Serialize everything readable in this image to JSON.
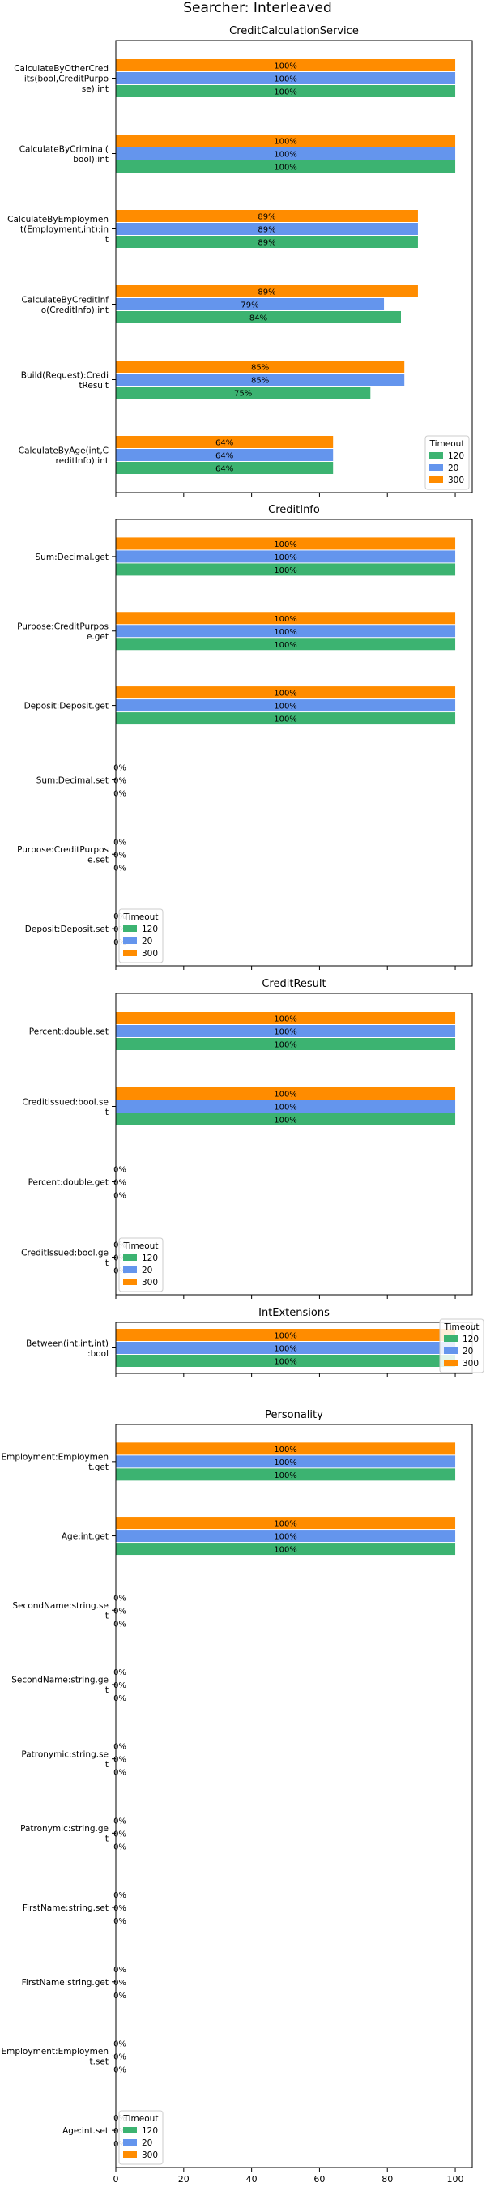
{
  "figure_title": "Searcher: Interleaved",
  "colors": {
    "120": "#3cb371",
    "20": "#6495ed",
    "300": "#ff8c00"
  },
  "chart_data": [
    {
      "type": "bar",
      "orientation": "horizontal",
      "title": "CreditCalculationService",
      "xlim": [
        0,
        105
      ],
      "xticks": [
        0,
        20,
        40,
        60,
        80,
        100
      ],
      "show_xtick_labels": false,
      "categories": [
        "CalculateByOtherCredits(bool,CreditPurpose):int",
        "CalculateByCriminal(bool):int",
        "CalculateByEmployment(Employment,int):int",
        "CalculateByCreditInfo(CreditInfo):int",
        "Build(Request):CreditResult",
        "CalculateByAge(int,CreditInfo):int"
      ],
      "category_label_lines": [
        [
          "CalculateByOtherCred",
          "its(bool,CreditPurpo",
          "se):int"
        ],
        [
          "CalculateByCriminal(",
          "bool):int"
        ],
        [
          "CalculateByEmploymen",
          "t(Employment,int):in",
          "t"
        ],
        [
          "CalculateByCreditInf",
          "o(CreditInfo):int"
        ],
        [
          "Build(Request):Credi",
          "tResult"
        ],
        [
          "CalculateByAge(int,C",
          "reditInfo):int"
        ]
      ],
      "series": [
        {
          "name": "120",
          "values": [
            100,
            100,
            89,
            84,
            75,
            64
          ],
          "labels": [
            "100%",
            "100%",
            "89%",
            "84%",
            "75%",
            "64%"
          ]
        },
        {
          "name": "20",
          "values": [
            100,
            100,
            89,
            79,
            85,
            64
          ],
          "labels": [
            "100%",
            "100%",
            "89%",
            "79%",
            "85%",
            "64%"
          ]
        },
        {
          "name": "300",
          "values": [
            100,
            100,
            89,
            89,
            85,
            64
          ],
          "labels": [
            "100%",
            "100%",
            "89%",
            "89%",
            "85%",
            "64%"
          ]
        }
      ],
      "legend": {
        "title": "Timeout",
        "entries": [
          "120",
          "20",
          "300"
        ],
        "position": "lower right"
      }
    },
    {
      "type": "bar",
      "orientation": "horizontal",
      "title": "CreditInfo",
      "xlim": [
        0,
        105
      ],
      "xticks": [
        0,
        20,
        40,
        60,
        80,
        100
      ],
      "show_xtick_labels": false,
      "categories": [
        "Sum:Decimal.get",
        "Purpose:CreditPurpose.get",
        "Deposit:Deposit.get",
        "Sum:Decimal.set",
        "Purpose:CreditPurpose.set",
        "Deposit:Deposit.set"
      ],
      "category_label_lines": [
        [
          "Sum:Decimal.get"
        ],
        [
          "Purpose:CreditPurpos",
          "e.get"
        ],
        [
          "Deposit:Deposit.get"
        ],
        [
          "Sum:Decimal.set"
        ],
        [
          "Purpose:CreditPurpos",
          "e.set"
        ],
        [
          "Deposit:Deposit.set"
        ]
      ],
      "series": [
        {
          "name": "120",
          "values": [
            100,
            100,
            100,
            0,
            0,
            0
          ],
          "labels": [
            "100%",
            "100%",
            "100%",
            "0%",
            "0%",
            "0%"
          ]
        },
        {
          "name": "20",
          "values": [
            100,
            100,
            100,
            0,
            0,
            0
          ],
          "labels": [
            "100%",
            "100%",
            "100%",
            "0%",
            "0%",
            "0%"
          ]
        },
        {
          "name": "300",
          "values": [
            100,
            100,
            100,
            0,
            0,
            0
          ],
          "labels": [
            "100%",
            "100%",
            "100%",
            "0%",
            "0%",
            "0%"
          ]
        }
      ],
      "legend": {
        "title": "Timeout",
        "entries": [
          "120",
          "20",
          "300"
        ],
        "position": "lower left"
      }
    },
    {
      "type": "bar",
      "orientation": "horizontal",
      "title": "CreditResult",
      "xlim": [
        0,
        105
      ],
      "xticks": [
        0,
        20,
        40,
        60,
        80,
        100
      ],
      "show_xtick_labels": false,
      "categories": [
        "Percent:double.set",
        "CreditIssued:bool.set",
        "Percent:double.get",
        "CreditIssued:bool.get"
      ],
      "category_label_lines": [
        [
          "Percent:double.set"
        ],
        [
          "CreditIssued:bool.se",
          "t"
        ],
        [
          "Percent:double.get"
        ],
        [
          "CreditIssued:bool.ge",
          "t"
        ]
      ],
      "series": [
        {
          "name": "120",
          "values": [
            100,
            100,
            0,
            0
          ],
          "labels": [
            "100%",
            "100%",
            "0%",
            "0%"
          ]
        },
        {
          "name": "20",
          "values": [
            100,
            100,
            0,
            0
          ],
          "labels": [
            "100%",
            "100%",
            "0%",
            "0%"
          ]
        },
        {
          "name": "300",
          "values": [
            100,
            100,
            0,
            0
          ],
          "labels": [
            "100%",
            "100%",
            "0%",
            "0%"
          ]
        }
      ],
      "legend": {
        "title": "Timeout",
        "entries": [
          "120",
          "20",
          "300"
        ],
        "position": "lower left"
      }
    },
    {
      "type": "bar",
      "orientation": "horizontal",
      "title": "IntExtensions",
      "xlim": [
        0,
        105
      ],
      "xticks": [
        0,
        20,
        40,
        60,
        80,
        100
      ],
      "show_xtick_labels": false,
      "categories": [
        "Between(int,int,int):bool"
      ],
      "category_label_lines": [
        [
          "Between(int,int,int)",
          ":bool"
        ]
      ],
      "series": [
        {
          "name": "120",
          "values": [
            100
          ],
          "labels": [
            "100%"
          ]
        },
        {
          "name": "20",
          "values": [
            100
          ],
          "labels": [
            "100%"
          ]
        },
        {
          "name": "300",
          "values": [
            100
          ],
          "labels": [
            "100%"
          ]
        }
      ],
      "legend": {
        "title": "Timeout",
        "entries": [
          "120",
          "20",
          "300"
        ],
        "position": "upper right"
      }
    },
    {
      "type": "bar",
      "orientation": "horizontal",
      "title": "Personality",
      "xlim": [
        0,
        105
      ],
      "xticks": [
        0,
        20,
        40,
        60,
        80,
        100
      ],
      "show_xtick_labels": true,
      "categories": [
        "Employment:Employment.get",
        "Age:int.get",
        "SecondName:string.set",
        "SecondName:string.get",
        "Patronymic:string.set",
        "Patronymic:string.get",
        "FirstName:string.set",
        "FirstName:string.get",
        "Employment:Employment.set",
        "Age:int.set"
      ],
      "category_label_lines": [
        [
          "Employment:Employmen",
          "t.get"
        ],
        [
          "Age:int.get"
        ],
        [
          "SecondName:string.se",
          "t"
        ],
        [
          "SecondName:string.ge",
          "t"
        ],
        [
          "Patronymic:string.se",
          "t"
        ],
        [
          "Patronymic:string.ge",
          "t"
        ],
        [
          "FirstName:string.set"
        ],
        [
          "FirstName:string.get"
        ],
        [
          "Employment:Employmen",
          "t.set"
        ],
        [
          "Age:int.set"
        ]
      ],
      "series": [
        {
          "name": "120",
          "values": [
            100,
            100,
            0,
            0,
            0,
            0,
            0,
            0,
            0,
            0
          ],
          "labels": [
            "100%",
            "100%",
            "0%",
            "0%",
            "0%",
            "0%",
            "0%",
            "0%",
            "0%",
            "0%"
          ]
        },
        {
          "name": "20",
          "values": [
            100,
            100,
            0,
            0,
            0,
            0,
            0,
            0,
            0,
            0
          ],
          "labels": [
            "100%",
            "100%",
            "0%",
            "0%",
            "0%",
            "0%",
            "0%",
            "0%",
            "0%",
            "0%"
          ]
        },
        {
          "name": "300",
          "values": [
            100,
            100,
            0,
            0,
            0,
            0,
            0,
            0,
            0,
            0
          ],
          "labels": [
            "100%",
            "100%",
            "0%",
            "0%",
            "0%",
            "0%",
            "0%",
            "0%",
            "0%",
            "0%"
          ]
        }
      ],
      "legend": {
        "title": "Timeout",
        "entries": [
          "120",
          "20",
          "300"
        ],
        "position": "lower left"
      }
    }
  ]
}
